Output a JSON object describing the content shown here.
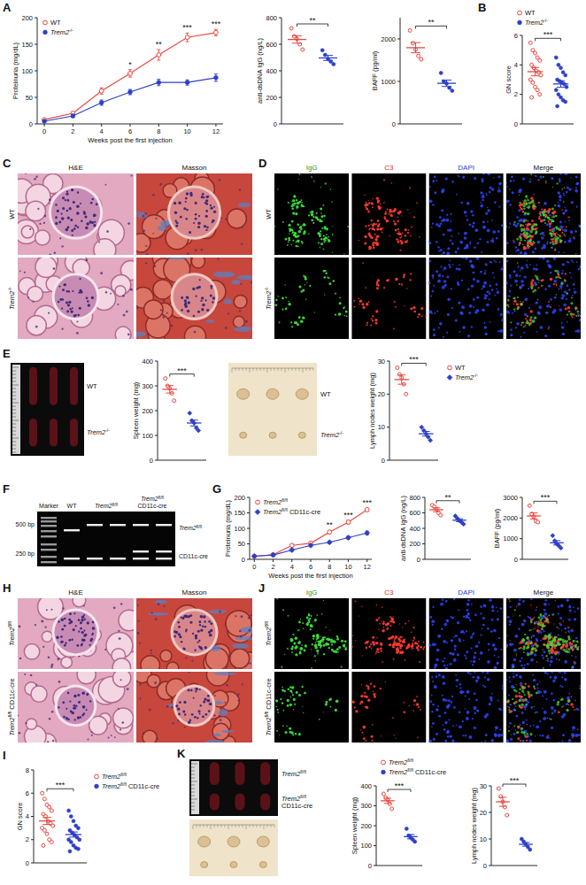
{
  "chart_data": [
    {
      "type": "line",
      "panel_label": "A",
      "ylabel": "Proteinuria (mg/dL)",
      "xlabel": "Weeks post the first injection",
      "x": [
        0,
        2,
        4,
        6,
        8,
        10,
        12
      ],
      "xlim": [
        -0.5,
        12.5
      ],
      "xticks": [
        0,
        2,
        4,
        6,
        8,
        10,
        12
      ],
      "ylim": [
        0,
        200
      ],
      "yticks": [
        0,
        50,
        100,
        150,
        200
      ],
      "legend": "top-left",
      "series": [
        {
          "name": "WT",
          "color": "#e8473f",
          "marker": "circle-open",
          "values": [
            8,
            20,
            62,
            95,
            130,
            163,
            172
          ],
          "errors": [
            2,
            3,
            6,
            7,
            10,
            8,
            6
          ]
        },
        {
          "name": "Trem2-/-",
          "color": "#2d3fc9",
          "marker": "circle",
          "values": [
            5,
            15,
            40,
            60,
            78,
            78,
            87
          ],
          "errors": [
            2,
            3,
            5,
            5,
            6,
            5,
            7
          ]
        }
      ],
      "annotations": [
        {
          "x": 6,
          "text": "*"
        },
        {
          "x": 8,
          "text": "**"
        },
        {
          "x": 10,
          "text": "***"
        },
        {
          "x": 12,
          "text": "***"
        }
      ]
    },
    {
      "type": "dotplot",
      "ylabel": "anti-dsDNA IgG (ng/L)",
      "categories": [
        null
      ],
      "ylim": [
        0,
        800
      ],
      "yticks": [
        0,
        200,
        400,
        600,
        800
      ],
      "legend": "none",
      "significance": "**",
      "series": [
        {
          "color": "#e8473f",
          "marker": "circle-open",
          "values": [
            636
          ],
          "errors": [
            28
          ],
          "points": [
            [
              720,
              660,
              640,
              600,
              560
            ]
          ]
        },
        {
          "color": "#2d3fc9",
          "marker": "circle",
          "values": [
            497
          ],
          "errors": [
            19
          ],
          "points": [
            [
              555,
              520,
              490,
              470,
              450
            ]
          ]
        }
      ]
    },
    {
      "type": "dotplot",
      "ylabel": "BAFF (pg/ml)",
      "categories": [
        null
      ],
      "ylim": [
        0,
        2500
      ],
      "yticks": [
        0,
        1000,
        2000
      ],
      "legend": "none",
      "significance": "**",
      "series": [
        {
          "color": "#e8473f",
          "marker": "circle-open",
          "values": [
            1794
          ],
          "errors": [
            120
          ],
          "points": [
            [
              2200,
              1900,
              1750,
              1600,
              1520
            ]
          ]
        },
        {
          "color": "#2d3fc9",
          "marker": "circle",
          "values": [
            956
          ],
          "errors": [
            75
          ],
          "points": [
            [
              1200,
              1000,
              950,
              850,
              780
            ]
          ]
        }
      ]
    },
    {
      "type": "dotplot",
      "panel_label": "B",
      "ylabel": "GN score",
      "categories": [
        null
      ],
      "ylim": [
        0,
        6
      ],
      "yticks": [
        0,
        2,
        4,
        6
      ],
      "legend": "top",
      "significance": "***",
      "series": [
        {
          "name": "WT",
          "color": "#e8473f",
          "marker": "circle-open",
          "values": [
            3.54
          ],
          "errors": [
            0.28
          ],
          "points": [
            [
              5.5,
              5,
              4.8,
              4.5,
              4.3,
              4,
              3.8,
              3.6,
              3.5,
              3.3,
              3,
              2.8,
              2.5,
              2.3,
              2,
              1.8
            ]
          ]
        },
        {
          "name": "Trem2-/-",
          "color": "#2d3fc9",
          "marker": "circle",
          "values": [
            2.71
          ],
          "errors": [
            0.22
          ],
          "points": [
            [
              4.5,
              4,
              3.8,
              3.5,
              3.3,
              3,
              2.9,
              2.8,
              2.7,
              2.5,
              2.3,
              2,
              1.8,
              1.6,
              1.5,
              1.2
            ]
          ]
        }
      ]
    },
    {
      "type": "dotplot",
      "ylabel": "Spleen weight (mg)",
      "categories": [
        null
      ],
      "ylim": [
        0,
        400
      ],
      "yticks": [
        0,
        100,
        200,
        300,
        400
      ],
      "legend": "none",
      "significance": "***",
      "series": [
        {
          "color": "#e8473f",
          "marker": "circle-open",
          "values": [
            286
          ],
          "errors": [
            15
          ],
          "points": [
            [
              330,
              300,
              290,
              270,
              240
            ]
          ]
        },
        {
          "color": "#2d3fc9",
          "marker": "diamond",
          "values": [
            150
          ],
          "errors": [
            12
          ],
          "points": [
            [
              190,
              160,
              150,
              130,
              120
            ]
          ]
        }
      ]
    },
    {
      "type": "dotplot",
      "ylabel": "Lymph nodes weight (mg)",
      "categories": [
        null
      ],
      "ylim": [
        0,
        30
      ],
      "yticks": [
        0,
        10,
        20,
        30
      ],
      "legend": "right",
      "significance": "***",
      "series": [
        {
          "name": "WT",
          "color": "#e8473f",
          "marker": "circle-open",
          "values": [
            24.4
          ],
          "errors": [
            1.4
          ],
          "points": [
            [
              28,
              26,
              25,
              23,
              20
            ]
          ]
        },
        {
          "name": "Trem2-/-",
          "color": "#2d3fc9",
          "marker": "diamond",
          "values": [
            8
          ],
          "errors": [
            0.7
          ],
          "points": [
            [
              10,
              9,
              8,
              7,
              6
            ]
          ]
        }
      ]
    },
    {
      "type": "line",
      "panel_label": "G",
      "ylabel": "Proteinuria (mg/dL)",
      "xlabel": "Weeks post the first injection",
      "x": [
        0,
        2,
        4,
        6,
        8,
        10,
        12
      ],
      "xlim": [
        -0.5,
        12.5
      ],
      "xticks": [
        0,
        2,
        4,
        6,
        8,
        10,
        12
      ],
      "ylim": [
        0,
        200
      ],
      "yticks": [
        0,
        50,
        100,
        150,
        200
      ],
      "legend": "top-left",
      "series": [
        {
          "name": "Trem2fl/fl",
          "color": "#e8473f",
          "marker": "circle-open",
          "values": [
            10,
            15,
            45,
            52,
            88,
            120,
            160
          ],
          "errors": [
            2,
            2,
            5,
            4,
            5,
            6,
            5
          ]
        },
        {
          "name": "Trem2fl/fl CD11c-cre",
          "color": "#2d3fc9",
          "marker": "diamond",
          "values": [
            10,
            14,
            30,
            45,
            55,
            70,
            85
          ],
          "errors": [
            2,
            2,
            4,
            4,
            4,
            5,
            6
          ]
        }
      ],
      "annotations": [
        {
          "x": 8,
          "text": "**"
        },
        {
          "x": 10,
          "text": "***"
        },
        {
          "x": 12,
          "text": "***"
        }
      ]
    },
    {
      "type": "dotplot",
      "ylabel": "anti-dsDNA IgG (ng/L)",
      "categories": [
        null
      ],
      "ylim": [
        0,
        800
      ],
      "yticks": [
        0,
        200,
        400,
        600,
        800
      ],
      "legend": "none",
      "significance": "**",
      "series": [
        {
          "color": "#e8473f",
          "marker": "circle-open",
          "values": [
            640
          ],
          "errors": [
            25
          ],
          "points": [
            [
              700,
              680,
              650,
              600,
              570
            ]
          ]
        },
        {
          "color": "#2d3fc9",
          "marker": "diamond",
          "values": [
            505
          ],
          "errors": [
            18
          ],
          "points": [
            [
              560,
              530,
              500,
              480,
              455
            ]
          ]
        }
      ]
    },
    {
      "type": "dotplot",
      "ylabel": "BAFF (pg/ml)",
      "categories": [
        null
      ],
      "ylim": [
        0,
        3000
      ],
      "yticks": [
        0,
        1000,
        2000,
        3000
      ],
      "legend": "none",
      "significance": "***",
      "series": [
        {
          "color": "#e8473f",
          "marker": "circle-open",
          "values": [
            2100
          ],
          "errors": [
            145
          ],
          "points": [
            [
              2600,
              2200,
              2050,
              1850,
              1800
            ]
          ]
        },
        {
          "color": "#2d3fc9",
          "marker": "diamond",
          "values": [
            800
          ],
          "errors": [
            105
          ],
          "points": [
            [
              1150,
              900,
              750,
              650,
              550
            ]
          ]
        }
      ]
    },
    {
      "type": "dotplot",
      "panel_label": "I",
      "ylabel": "GN score",
      "categories": [
        null
      ],
      "ylim": [
        0,
        8
      ],
      "yticks": [
        0,
        2,
        4,
        6,
        8
      ],
      "legend": "right",
      "significance": "***",
      "series": [
        {
          "name": "Trem2fl/fl",
          "color": "#e8473f",
          "marker": "circle-open",
          "values": [
            3.61
          ],
          "errors": [
            0.3
          ],
          "points": [
            [
              6,
              5.5,
              5,
              4.8,
              4.5,
              4.2,
              4,
              3.6,
              3.4,
              3.2,
              3,
              2.8,
              2.5,
              2,
              1.8,
              1.5
            ]
          ]
        },
        {
          "name": "Trem2fl/fl CD11c-cre",
          "color": "#2d3fc9",
          "marker": "circle",
          "values": [
            2.44
          ],
          "errors": [
            0.22
          ],
          "points": [
            [
              4.5,
              4,
              3.6,
              3.2,
              3,
              2.8,
              2.6,
              2.4,
              2.2,
              2,
              2,
              1.8,
              1.5,
              1.3,
              1.2,
              1
            ]
          ]
        }
      ]
    },
    {
      "type": "dotplot",
      "ylabel": "Spleen weight (mg)",
      "categories": [
        null
      ],
      "ylim": [
        0,
        400
      ],
      "yticks": [
        0,
        100,
        200,
        300,
        400
      ],
      "legend": "top",
      "significance": "***",
      "series": [
        {
          "name": "Trem2fl/fl",
          "color": "#e8473f",
          "marker": "circle-open",
          "values": [
            325
          ],
          "errors": [
            13
          ],
          "points": [
            [
              360,
              340,
              330,
              310,
              285
            ]
          ]
        },
        {
          "name": "Trem2fl/fl CD11c-cre",
          "color": "#2d3fc9",
          "marker": "circle",
          "values": [
            145
          ],
          "errors": [
            11
          ],
          "points": [
            [
              185,
              150,
              140,
              130,
              120
            ]
          ]
        }
      ]
    },
    {
      "type": "dotplot",
      "ylabel": "Lymph nodes weight (mg)",
      "categories": [
        null
      ],
      "ylim": [
        0,
        30
      ],
      "yticks": [
        0,
        10,
        20,
        30
      ],
      "legend": "none",
      "significance": "***",
      "series": [
        {
          "color": "#e8473f",
          "marker": "circle-open",
          "values": [
            24
          ],
          "errors": [
            1.7
          ],
          "points": [
            [
              29,
              26,
              24,
              22,
              19
            ]
          ]
        },
        {
          "color": "#2d3fc9",
          "marker": "circle",
          "values": [
            8
          ],
          "errors": [
            0.7
          ],
          "points": [
            [
              10,
              9,
              8,
              7,
              6
            ]
          ]
        }
      ]
    }
  ],
  "histology": [
    {
      "panel_label": "C",
      "columns": [
        "H&E",
        "Masson"
      ],
      "rows": [
        "WT",
        "Trem2-/-"
      ]
    },
    {
      "panel_label": "H",
      "columns": [
        "H&E",
        "Masson"
      ],
      "rows": [
        "Trem2fl/fl",
        "Trem2fl/fl CD11c-cre"
      ]
    }
  ],
  "fluorescence": [
    {
      "panel_label": "D",
      "columns": [
        "IgG",
        "C3",
        "DAPI",
        "Merge"
      ],
      "rows": [
        "WT",
        "Trem2-/-"
      ]
    },
    {
      "panel_label": "J",
      "columns": [
        "IgG",
        "C3",
        "DAPI",
        "Merge"
      ],
      "rows": [
        "Trem2fl/fl",
        "Trem2fl/fl CD11c-cre"
      ]
    }
  ],
  "organs": [
    {
      "panel_label": "E",
      "spleen_rows": [
        "WT",
        "Trem2-/-"
      ],
      "lymph_rows": [
        "WT",
        "Trem2-/-"
      ]
    },
    {
      "panel_label": "K",
      "spleen_rows": [
        "Trem2fl/fl",
        "Trem2fl/fl CD11c-cre"
      ]
    }
  ],
  "gel": {
    "panel_label": "F",
    "ladder": [
      "500 bp",
      "250 bp"
    ],
    "lanes": [
      "Marker",
      "WT",
      "Trem2fl/fl",
      "Trem2fl/fl CD11c-cre"
    ],
    "rows": [
      "Trem2fl/fl",
      "CD11c-cre"
    ]
  }
}
